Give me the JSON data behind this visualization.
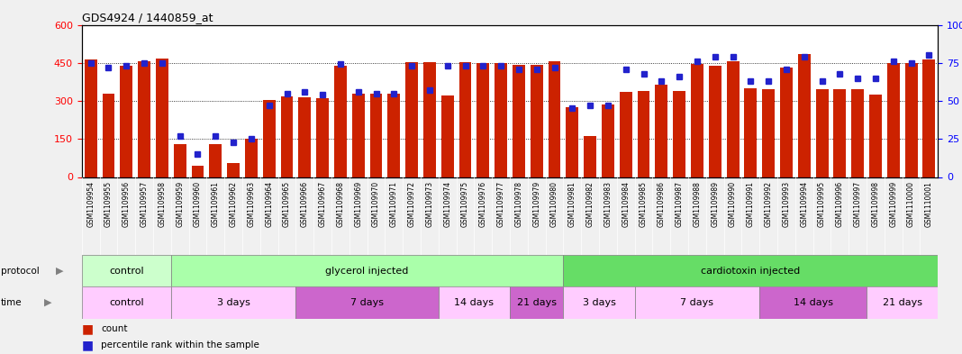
{
  "title": "GDS4924 / 1440859_at",
  "samples": [
    "GSM1109954",
    "GSM1109955",
    "GSM1109956",
    "GSM1109957",
    "GSM1109958",
    "GSM1109959",
    "GSM1109960",
    "GSM1109961",
    "GSM1109962",
    "GSM1109963",
    "GSM1109964",
    "GSM1109965",
    "GSM1109966",
    "GSM1109967",
    "GSM1109968",
    "GSM1109969",
    "GSM1109970",
    "GSM1109971",
    "GSM1109972",
    "GSM1109973",
    "GSM1109974",
    "GSM1109975",
    "GSM1109976",
    "GSM1109977",
    "GSM1109978",
    "GSM1109979",
    "GSM1109980",
    "GSM1109981",
    "GSM1109982",
    "GSM1109983",
    "GSM1109984",
    "GSM1109985",
    "GSM1109986",
    "GSM1109987",
    "GSM1109988",
    "GSM1109989",
    "GSM1109990",
    "GSM1109991",
    "GSM1109992",
    "GSM1109993",
    "GSM1109994",
    "GSM1109995",
    "GSM1109996",
    "GSM1109997",
    "GSM1109998",
    "GSM1109999",
    "GSM1110000",
    "GSM1110001"
  ],
  "counts": [
    462,
    328,
    437,
    455,
    468,
    128,
    45,
    128,
    55,
    152,
    305,
    318,
    315,
    310,
    440,
    327,
    327,
    330,
    452,
    453,
    323,
    453,
    450,
    450,
    443,
    443,
    455,
    275,
    162,
    285,
    335,
    340,
    365,
    340,
    445,
    440,
    455,
    350,
    345,
    430,
    485,
    345,
    345,
    345,
    325,
    448,
    450,
    462
  ],
  "percentiles": [
    75,
    72,
    73,
    75,
    75,
    27,
    15,
    27,
    23,
    25,
    47,
    55,
    56,
    54,
    74,
    56,
    55,
    55,
    73,
    57,
    73,
    73,
    73,
    73,
    71,
    71,
    72,
    45,
    47,
    47,
    71,
    68,
    63,
    66,
    76,
    79,
    79,
    63,
    63,
    71,
    79,
    63,
    68,
    65,
    65,
    76,
    75,
    80
  ],
  "ylim_left": [
    0,
    600
  ],
  "ylim_right": [
    0,
    100
  ],
  "yticks_left": [
    0,
    150,
    300,
    450,
    600
  ],
  "yticks_right": [
    0,
    25,
    50,
    75,
    100
  ],
  "bar_color": "#cc2200",
  "marker_color": "#2222cc",
  "protocol_bands": [
    {
      "label": "control",
      "start": 0,
      "end": 5,
      "color": "#ccffcc"
    },
    {
      "label": "glycerol injected",
      "start": 5,
      "end": 27,
      "color": "#aaffaa"
    },
    {
      "label": "cardiotoxin injected",
      "start": 27,
      "end": 48,
      "color": "#66dd66"
    }
  ],
  "time_bands": [
    {
      "label": "control",
      "start": 0,
      "end": 5,
      "color": "#ffccff"
    },
    {
      "label": "3 days",
      "start": 5,
      "end": 12,
      "color": "#ffccff"
    },
    {
      "label": "7 days",
      "start": 12,
      "end": 20,
      "color": "#cc66cc"
    },
    {
      "label": "14 days",
      "start": 20,
      "end": 24,
      "color": "#ffccff"
    },
    {
      "label": "21 days",
      "start": 24,
      "end": 27,
      "color": "#cc66cc"
    },
    {
      "label": "3 days",
      "start": 27,
      "end": 31,
      "color": "#ffccff"
    },
    {
      "label": "7 days",
      "start": 31,
      "end": 38,
      "color": "#ffccff"
    },
    {
      "label": "14 days",
      "start": 38,
      "end": 44,
      "color": "#cc66cc"
    },
    {
      "label": "21 days",
      "start": 44,
      "end": 48,
      "color": "#ffccff"
    }
  ],
  "fig_bg": "#f0f0f0",
  "plot_bg": "#ffffff",
  "tick_area_bg": "#d8d8d8"
}
